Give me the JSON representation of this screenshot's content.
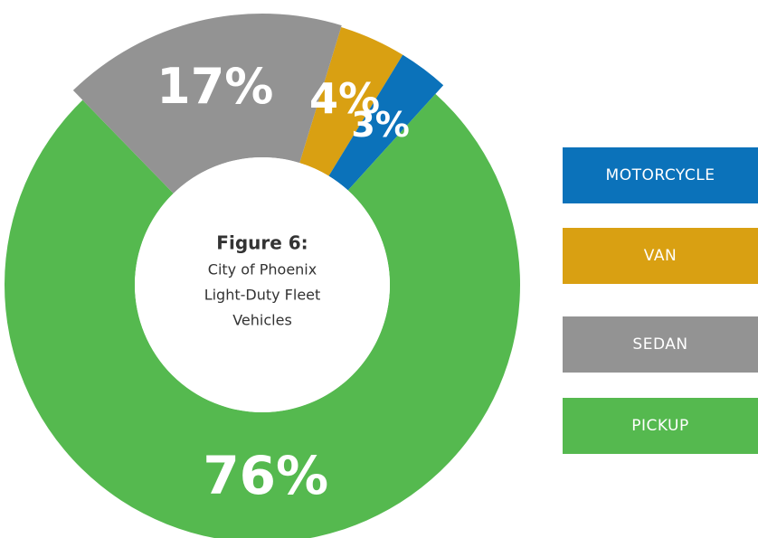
{
  "chart_data": {
    "type": "donut",
    "title": "Figure 6:",
    "subtitle": [
      "City of Phoenix",
      "Light-Duty Fleet",
      "Vehicles"
    ],
    "categories": [
      "MOTORCYCLE",
      "VAN",
      "SEDAN",
      "PICKUP"
    ],
    "values": [
      3,
      4,
      17,
      76
    ],
    "value_labels": [
      "3%",
      "4%",
      "17%",
      "76%"
    ],
    "colors": [
      "#0b72ba",
      "#d9a012",
      "#939393",
      "#55b94f"
    ],
    "legend": "right"
  }
}
